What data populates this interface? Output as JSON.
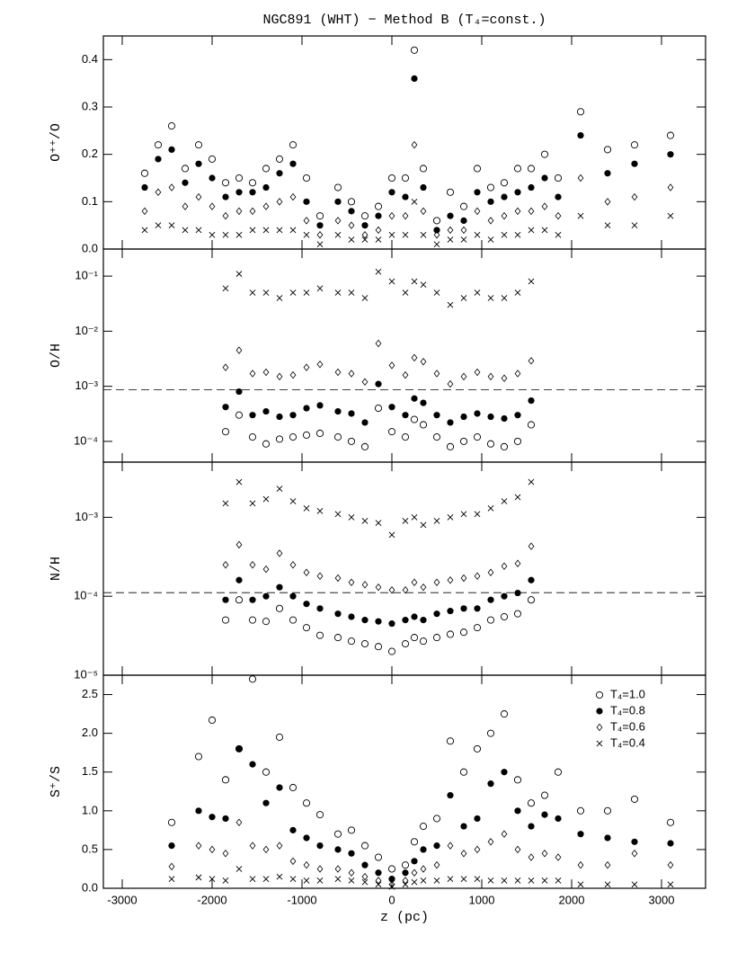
{
  "chart_data": [
    {
      "type": "scatter",
      "title": "NGC891 (WHT) − Method B (T₄=const.)",
      "ylabel": "O⁺⁺/O",
      "log_scale": false,
      "xlim": [
        -3210,
        3490
      ],
      "xticks": [
        -3000,
        -2000,
        -1000,
        0,
        1000,
        2000,
        3000
      ],
      "ylim": [
        0,
        0.45
      ],
      "yticks": [
        {
          "value": 0,
          "label": "0.0"
        },
        0.1,
        0.2,
        0.3,
        0.4
      ],
      "x": [
        -2750,
        -2600,
        -2450,
        -2300,
        -2150,
        -2000,
        -1850,
        -1700,
        -1550,
        -1400,
        -1250,
        -1100,
        -950,
        -800,
        -600,
        -450,
        -300,
        -150,
        0,
        150,
        250,
        350,
        500,
        650,
        800,
        950,
        1100,
        1250,
        1400,
        1550,
        1700,
        1850,
        2100,
        2400,
        2700,
        3100
      ],
      "series": [
        {
          "name": "T₄=1.0",
          "marker": "circle-open",
          "color": "#000000",
          "values": [
            0.16,
            0.22,
            0.26,
            0.17,
            0.22,
            0.19,
            0.14,
            0.15,
            0.14,
            0.17,
            0.19,
            0.22,
            0.15,
            0.07,
            0.13,
            0.1,
            0.07,
            0.09,
            0.15,
            0.15,
            0.42,
            0.17,
            0.06,
            0.12,
            0.09,
            0.17,
            0.13,
            0.14,
            0.17,
            0.17,
            0.2,
            0.15,
            0.29,
            0.21,
            0.22,
            0.24
          ]
        },
        {
          "name": "T₄=0.8",
          "marker": "circle-filled",
          "color": "#000000",
          "values": [
            0.13,
            0.19,
            0.21,
            0.14,
            0.18,
            0.15,
            0.11,
            0.12,
            0.12,
            0.13,
            0.16,
            0.18,
            0.1,
            0.05,
            0.1,
            0.08,
            0.05,
            0.07,
            0.12,
            0.11,
            0.36,
            0.13,
            0.04,
            0.07,
            0.06,
            0.12,
            0.1,
            0.11,
            0.12,
            0.13,
            0.15,
            0.11,
            0.24,
            0.16,
            0.18,
            0.2
          ]
        },
        {
          "name": "T₄=0.6",
          "marker": "diamond",
          "color": "#000000",
          "values": [
            0.08,
            0.12,
            0.13,
            0.09,
            0.11,
            0.09,
            0.07,
            0.08,
            0.08,
            0.09,
            0.1,
            0.11,
            0.06,
            0.03,
            0.06,
            0.05,
            0.03,
            0.04,
            0.07,
            0.07,
            0.22,
            0.08,
            0.03,
            0.04,
            0.04,
            0.08,
            0.06,
            0.07,
            0.08,
            0.08,
            0.09,
            0.07,
            0.15,
            0.1,
            0.11,
            0.13
          ]
        },
        {
          "name": "T₄=0.4",
          "marker": "cross",
          "color": "#000000",
          "values": [
            0.04,
            0.05,
            0.05,
            0.04,
            0.04,
            0.03,
            0.03,
            0.03,
            0.04,
            0.04,
            0.04,
            0.04,
            0.03,
            0.01,
            0.03,
            0.02,
            0.02,
            0.02,
            0.03,
            0.03,
            0.1,
            0.03,
            0.01,
            0.02,
            0.02,
            0.03,
            0.02,
            0.03,
            0.03,
            0.04,
            0.04,
            0.03,
            0.07,
            0.05,
            0.05,
            0.07
          ]
        }
      ]
    },
    {
      "type": "scatter",
      "ylabel": "O/H",
      "log_scale": true,
      "hline": 0.00086,
      "xlim": [
        -3210,
        3490
      ],
      "xticks": [
        -3000,
        -2000,
        -1000,
        0,
        1000,
        2000,
        3000
      ],
      "ylim": [
        4.2e-05,
        0.31
      ],
      "yticks": [
        {
          "value": 0.1,
          "label": "10⁻¹"
        },
        {
          "value": 0.01,
          "label": "10⁻²"
        },
        {
          "value": 0.001,
          "label": "10⁻³"
        },
        {
          "value": 0.0001,
          "label": "10⁻⁴"
        }
      ],
      "x": [
        -2750,
        -2600,
        -2450,
        -2300,
        -2150,
        -2000,
        -1850,
        -1700,
        -1550,
        -1400,
        -1250,
        -1100,
        -950,
        -800,
        -600,
        -450,
        -300,
        -150,
        0,
        150,
        250,
        350,
        500,
        650,
        800,
        950,
        1100,
        1250,
        1400,
        1550,
        1700,
        1850,
        2100,
        2400,
        2700,
        3100
      ],
      "series": [
        {
          "name": "T₄=1.0",
          "marker": "circle-open",
          "color": "#000000",
          "values": [
            null,
            null,
            null,
            null,
            null,
            null,
            0.00015,
            0.0003,
            0.00012,
            9e-05,
            0.00011,
            0.00012,
            0.00013,
            0.00014,
            0.00012,
            0.0001,
            8e-05,
            0.0004,
            0.00015,
            0.00012,
            0.00025,
            0.0002,
            0.00012,
            8e-05,
            0.0001,
            0.00012,
            9e-05,
            8e-05,
            0.0001,
            0.0002,
            null,
            null,
            null,
            null,
            null,
            null
          ]
        },
        {
          "name": "T₄=0.8",
          "marker": "circle-filled",
          "color": "#000000",
          "values": [
            null,
            null,
            null,
            null,
            null,
            null,
            0.00042,
            0.0008,
            0.0003,
            0.00035,
            0.00028,
            0.0003,
            0.0004,
            0.00045,
            0.00035,
            0.00032,
            0.00022,
            0.0011,
            0.00042,
            0.0003,
            0.0006,
            0.0005,
            0.0003,
            0.00022,
            0.00028,
            0.00032,
            0.00028,
            0.00026,
            0.0003,
            0.00055,
            null,
            null,
            null,
            null,
            null,
            null
          ]
        },
        {
          "name": "T₄=0.6",
          "marker": "diamond",
          "color": "#000000",
          "values": [
            null,
            null,
            null,
            null,
            null,
            null,
            0.0022,
            0.0045,
            0.0017,
            0.0018,
            0.0015,
            0.0016,
            0.0022,
            0.0025,
            0.0018,
            0.0017,
            0.0012,
            0.006,
            0.0024,
            0.0016,
            0.0033,
            0.0028,
            0.0017,
            0.0011,
            0.0015,
            0.0018,
            0.0015,
            0.0014,
            0.0017,
            0.0029,
            null,
            null,
            null,
            null,
            null,
            null
          ]
        },
        {
          "name": "T₄=0.4",
          "marker": "cross",
          "color": "#000000",
          "values": [
            null,
            null,
            null,
            null,
            null,
            null,
            0.06,
            0.11,
            0.05,
            0.05,
            0.04,
            0.05,
            0.05,
            0.06,
            0.05,
            0.05,
            0.04,
            0.12,
            0.08,
            0.05,
            0.08,
            0.07,
            0.05,
            0.03,
            0.04,
            0.05,
            0.04,
            0.04,
            0.05,
            0.08,
            null,
            null,
            null,
            null,
            null,
            null
          ]
        }
      ]
    },
    {
      "type": "scatter",
      "ylabel": "N/H",
      "log_scale": true,
      "hline": 0.000111,
      "xlim": [
        -3210,
        3490
      ],
      "xticks": [
        -3000,
        -2000,
        -1000,
        0,
        1000,
        2000,
        3000
      ],
      "ylim": [
        1e-05,
        0.005
      ],
      "yticks": [
        {
          "value": 0.001,
          "label": "10⁻³"
        },
        {
          "value": 0.0001,
          "label": "10⁻⁴"
        },
        {
          "value": 1e-05,
          "label": "10⁻⁵"
        }
      ],
      "x": [
        -2750,
        -2600,
        -2450,
        -2300,
        -2150,
        -2000,
        -1850,
        -1700,
        -1550,
        -1400,
        -1250,
        -1100,
        -950,
        -800,
        -600,
        -450,
        -300,
        -150,
        0,
        150,
        250,
        350,
        500,
        650,
        800,
        950,
        1100,
        1250,
        1400,
        1550,
        1700,
        1850,
        2100,
        2400,
        2700,
        3100
      ],
      "series": [
        {
          "name": "T₄=1.0",
          "marker": "circle-open",
          "color": "#000000",
          "values": [
            null,
            null,
            null,
            null,
            null,
            null,
            5e-05,
            9e-05,
            5e-05,
            4.8e-05,
            7e-05,
            5e-05,
            4e-05,
            3.2e-05,
            3e-05,
            2.7e-05,
            2.5e-05,
            2.3e-05,
            2e-05,
            2.5e-05,
            3e-05,
            2.7e-05,
            3e-05,
            3.3e-05,
            3.5e-05,
            4e-05,
            5e-05,
            5.5e-05,
            6e-05,
            9e-05,
            null,
            null,
            null,
            null,
            null,
            null
          ]
        },
        {
          "name": "T₄=0.8",
          "marker": "circle-filled",
          "color": "#000000",
          "values": [
            null,
            null,
            null,
            null,
            null,
            null,
            9e-05,
            0.00016,
            9e-05,
            0.0001,
            0.00013,
            0.0001,
            8e-05,
            7e-05,
            6e-05,
            5.5e-05,
            5e-05,
            4.8e-05,
            4.5e-05,
            5e-05,
            5.5e-05,
            5e-05,
            6e-05,
            6.5e-05,
            7e-05,
            7e-05,
            9e-05,
            0.0001,
            0.00011,
            0.00016,
            null,
            null,
            null,
            null,
            null,
            null
          ]
        },
        {
          "name": "T₄=0.6",
          "marker": "diamond",
          "color": "#000000",
          "values": [
            null,
            null,
            null,
            null,
            null,
            null,
            0.00025,
            0.00045,
            0.00025,
            0.00022,
            0.00035,
            0.00025,
            0.0002,
            0.00018,
            0.00017,
            0.00015,
            0.00014,
            0.00013,
            0.00012,
            0.00012,
            0.00015,
            0.00013,
            0.00015,
            0.00016,
            0.00017,
            0.00018,
            0.0002,
            0.00024,
            0.00026,
            0.00043,
            null,
            null,
            null,
            null,
            null,
            null
          ]
        },
        {
          "name": "T₄=0.4",
          "marker": "cross",
          "color": "#000000",
          "values": [
            null,
            null,
            null,
            null,
            null,
            null,
            0.0015,
            0.0028,
            0.0015,
            0.0017,
            0.0023,
            0.0016,
            0.0013,
            0.0012,
            0.0011,
            0.001,
            0.0009,
            0.00085,
            0.0006,
            0.0009,
            0.001,
            0.0008,
            0.0009,
            0.001,
            0.0011,
            0.0011,
            0.0013,
            0.0016,
            0.0018,
            0.0028,
            null,
            null,
            null,
            null,
            null,
            null
          ]
        }
      ]
    },
    {
      "type": "scatter",
      "ylabel": "S⁺/S",
      "xlabel": "z (pc)",
      "log_scale": false,
      "legend": "upper right",
      "xlim": [
        -3210,
        3490
      ],
      "xticks": [
        -3000,
        -2000,
        -1000,
        0,
        1000,
        2000,
        3000
      ],
      "ylim": [
        0,
        2.75
      ],
      "yticks": [
        {
          "value": 0,
          "label": "0.0"
        },
        0.5,
        {
          "value": 1,
          "label": "1.0"
        },
        1.5,
        {
          "value": 2,
          "label": "2.0"
        },
        2.5
      ],
      "x": [
        -2750,
        -2600,
        -2450,
        -2300,
        -2150,
        -2000,
        -1850,
        -1700,
        -1550,
        -1400,
        -1250,
        -1100,
        -950,
        -800,
        -600,
        -450,
        -300,
        -150,
        0,
        150,
        250,
        350,
        500,
        650,
        800,
        950,
        1100,
        1250,
        1400,
        1550,
        1700,
        1850,
        2100,
        2400,
        2700,
        3100
      ],
      "series": [
        {
          "name": "T₄=1.0",
          "marker": "circle-open",
          "color": "#000000",
          "values": [
            null,
            null,
            0.85,
            null,
            1.7,
            2.17,
            1.4,
            1.8,
            2.7,
            1.5,
            1.95,
            1.3,
            1.1,
            0.95,
            0.7,
            0.75,
            0.55,
            0.4,
            0.25,
            0.3,
            0.6,
            0.8,
            0.9,
            1.9,
            1.5,
            1.8,
            2.0,
            2.25,
            1.4,
            1.1,
            1.2,
            1.5,
            1.0,
            1.0,
            1.15,
            0.85
          ]
        },
        {
          "name": "T₄=0.8",
          "marker": "circle-filled",
          "color": "#000000",
          "values": [
            null,
            null,
            0.55,
            null,
            1.0,
            0.92,
            0.9,
            1.8,
            1.6,
            1.1,
            1.3,
            0.75,
            0.65,
            0.55,
            0.5,
            0.45,
            0.3,
            0.2,
            0.12,
            0.2,
            0.35,
            0.5,
            0.55,
            1.2,
            0.8,
            0.9,
            1.35,
            1.5,
            1.0,
            0.8,
            0.95,
            0.9,
            0.7,
            0.65,
            0.6,
            0.58
          ]
        },
        {
          "name": "T₄=0.6",
          "marker": "diamond",
          "color": "#000000",
          "values": [
            null,
            null,
            0.28,
            null,
            0.55,
            0.5,
            0.45,
            0.85,
            0.55,
            0.5,
            0.55,
            0.35,
            0.3,
            0.25,
            0.25,
            0.2,
            0.15,
            0.1,
            0.05,
            0.1,
            0.2,
            0.25,
            0.3,
            0.55,
            0.45,
            0.5,
            0.6,
            0.7,
            0.5,
            0.4,
            0.45,
            0.4,
            0.3,
            0.3,
            0.45,
            0.3
          ]
        },
        {
          "name": "T₄=0.4",
          "marker": "cross",
          "color": "#000000",
          "values": [
            null,
            null,
            0.12,
            null,
            0.14,
            0.12,
            0.1,
            0.25,
            0.12,
            0.12,
            0.15,
            0.12,
            0.1,
            0.1,
            0.12,
            0.1,
            0.08,
            0.05,
            0.02,
            0.05,
            0.08,
            0.1,
            0.1,
            0.12,
            0.12,
            0.12,
            0.1,
            0.1,
            0.1,
            0.1,
            0.1,
            0.1,
            0.05,
            0.05,
            0.05,
            0.05
          ]
        }
      ]
    }
  ]
}
